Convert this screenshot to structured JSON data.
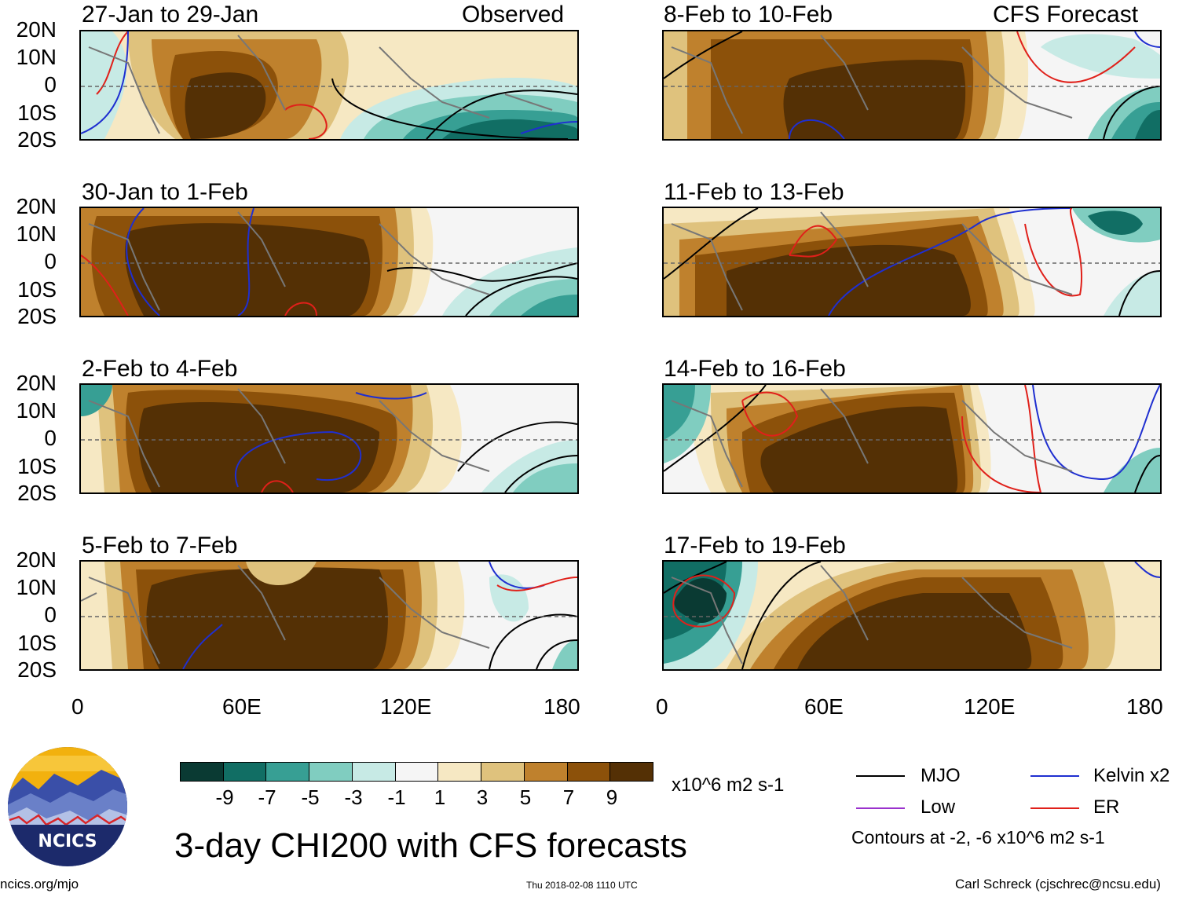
{
  "colorbar": {
    "colors": [
      "#0a3a33",
      "#116e64",
      "#379f94",
      "#80cdc0",
      "#c7eae5",
      "#f5f5f5",
      "#f6e8c3",
      "#dfc27d",
      "#bf812d",
      "#8c510a",
      "#543005"
    ],
    "labels": [
      "-9",
      "-7",
      "-5",
      "-3",
      "-1",
      "1",
      "3",
      "5",
      "7",
      "9"
    ],
    "units": "x10^6 m2 s-1"
  },
  "lat_labels": [
    "20N",
    "10N",
    "0",
    "10S",
    "20S"
  ],
  "lon_labels": [
    "0",
    "60E",
    "120E",
    "180"
  ],
  "columns": {
    "left_tag": "Observed",
    "right_tag": "CFS Forecast"
  },
  "panels_left": [
    {
      "title": "27-Jan to 29-Jan"
    },
    {
      "title": "30-Jan to 1-Feb"
    },
    {
      "title": "2-Feb to 4-Feb"
    },
    {
      "title": "5-Feb to 7-Feb"
    }
  ],
  "panels_right": [
    {
      "title": "8-Feb to 10-Feb"
    },
    {
      "title": "11-Feb to 13-Feb"
    },
    {
      "title": "14-Feb to 16-Feb"
    },
    {
      "title": "17-Feb to 19-Feb"
    }
  ],
  "legend": {
    "items": [
      {
        "label": "MJO",
        "color": "#000000"
      },
      {
        "label": "Kelvin x2",
        "color": "#1f2fd0"
      },
      {
        "label": "Low",
        "color": "#9a32cd"
      },
      {
        "label": "ER",
        "color": "#e0201a"
      }
    ],
    "contours_note": "Contours at -2, -6 x10^6 m2 s-1"
  },
  "logo": {
    "text": "NCICS"
  },
  "title": "3-day CHI200 with CFS forecasts",
  "footer": {
    "url": "ncics.org/mjo",
    "timestamp": "Thu 2018-02-08 1110 UTC",
    "credit": "Carl Schreck (cjschrec@ncsu.edu)"
  }
}
